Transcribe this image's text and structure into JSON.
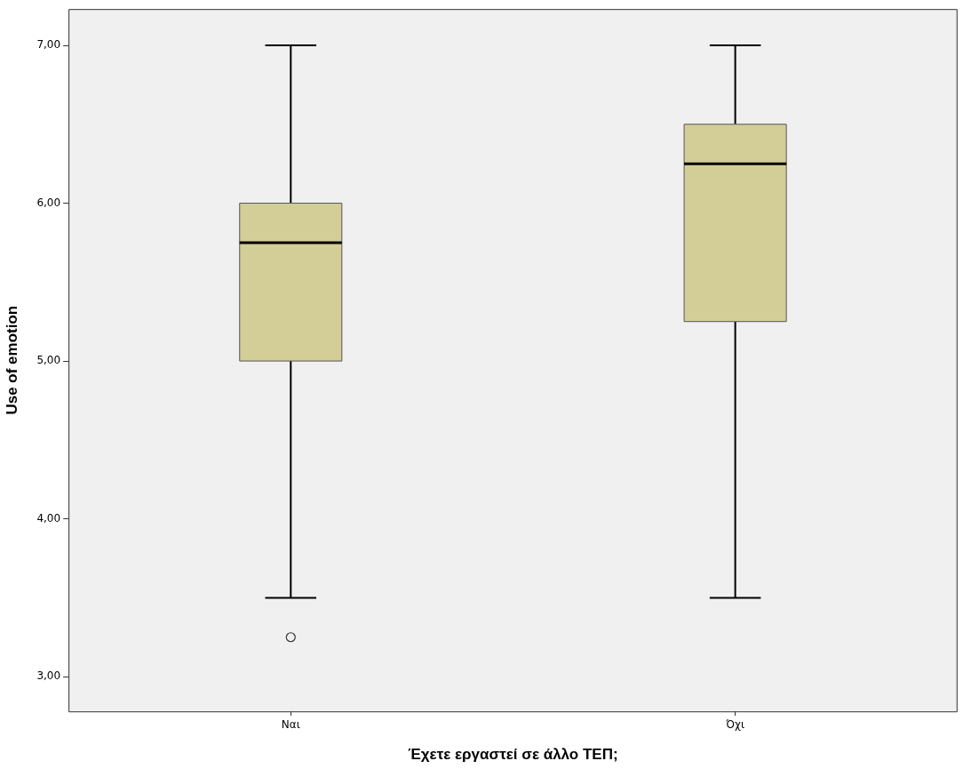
{
  "chart_data": {
    "type": "box",
    "xlabel": "Έχετε εργαστεί σε άλλο ΤΕΠ;",
    "ylabel": "Use of emotion",
    "categories": [
      "Ναι",
      "Όχι"
    ],
    "color": "#d3cd98",
    "boxes": [
      {
        "low": 3.5,
        "q1": 5.0,
        "median": 5.75,
        "q3": 6.0,
        "high": 7.0,
        "outliers": [
          3.25
        ]
      },
      {
        "low": 3.5,
        "q1": 5.25,
        "median": 6.25,
        "q3": 6.5,
        "high": 7.0
      }
    ],
    "ylim": [
      2.78,
      7.23
    ],
    "yticks": [
      {
        "value": 3,
        "label": "3,00"
      },
      {
        "value": 4,
        "label": "4,00"
      },
      {
        "value": 5,
        "label": "5,00"
      },
      {
        "value": 6,
        "label": "6,00"
      },
      {
        "value": 7,
        "label": "7,00"
      }
    ],
    "grid": false,
    "legend": false,
    "marker": "circle"
  }
}
